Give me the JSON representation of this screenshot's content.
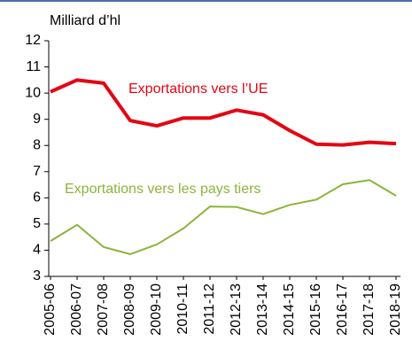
{
  "chart_data": {
    "type": "line",
    "y_axis_label": "Milliard d’hl",
    "categories": [
      "2005-06",
      "2006-07",
      "2007-08",
      "2008-09",
      "2009-10",
      "2010-11",
      "2011-12",
      "2012-13",
      "2013-14",
      "2014-15",
      "2015-16",
      "2016-17",
      "2017-18",
      "2018-19"
    ],
    "series": [
      {
        "name": "Exportations vers l’UE",
        "color": "#e30613",
        "values": [
          10.05,
          10.5,
          10.38,
          8.95,
          8.75,
          9.05,
          9.05,
          9.35,
          9.17,
          8.57,
          8.05,
          8.02,
          8.12,
          8.07
        ]
      },
      {
        "name": "Exportations vers les pays tiers",
        "color": "#8cb43a",
        "values": [
          4.35,
          4.97,
          4.12,
          3.85,
          4.22,
          4.83,
          5.67,
          5.65,
          5.38,
          5.73,
          5.93,
          6.52,
          6.68,
          6.08
        ]
      }
    ],
    "ylim": [
      3,
      12
    ],
    "yticks": [
      3,
      4,
      5,
      6,
      7,
      8,
      9,
      10,
      11,
      12
    ],
    "grid": false
  }
}
